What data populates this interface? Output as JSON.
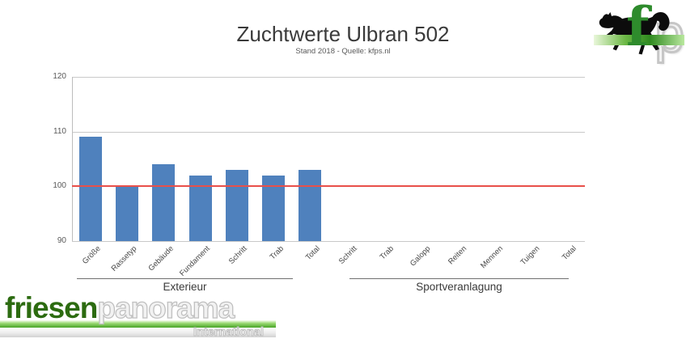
{
  "chart_data": {
    "type": "bar",
    "title": "Zuchtwerte Ulbran 502",
    "subtitle": "Stand 2018 - Quelle: kfps.nl",
    "categories": [
      "Größe",
      "Rassetyp",
      "Gebäude",
      "Fundament",
      "Schritt",
      "Trab",
      "Total",
      "Schritt",
      "Trab",
      "Galopp",
      "Reiten",
      "Mennen",
      "Tuigen",
      "Total"
    ],
    "values": [
      109,
      100,
      104,
      102,
      103,
      102,
      103,
      null,
      null,
      null,
      null,
      null,
      null,
      null
    ],
    "category_groups": [
      {
        "label": "Exterieur",
        "from": 0,
        "to": 6
      },
      {
        "label": "Sportveranlagung",
        "from": 7,
        "to": 13
      }
    ],
    "ylim": [
      90,
      120
    ],
    "yticks": [
      90,
      100,
      110,
      120
    ],
    "grid": true,
    "legend": "none",
    "bar_color": "#4f81bd",
    "reference_line": {
      "value": 100,
      "color": "#e8504a"
    }
  },
  "branding": {
    "fp_watermark": {
      "letter_f": "f",
      "letter_p": "p"
    },
    "footer_logo": {
      "word1": "friesen",
      "word2": "panorama",
      "subtitle": "International"
    },
    "colors": {
      "logo_green": "#2c6b10",
      "stripe_green": "#47a426",
      "horse_black": "#0c0c0c"
    }
  }
}
